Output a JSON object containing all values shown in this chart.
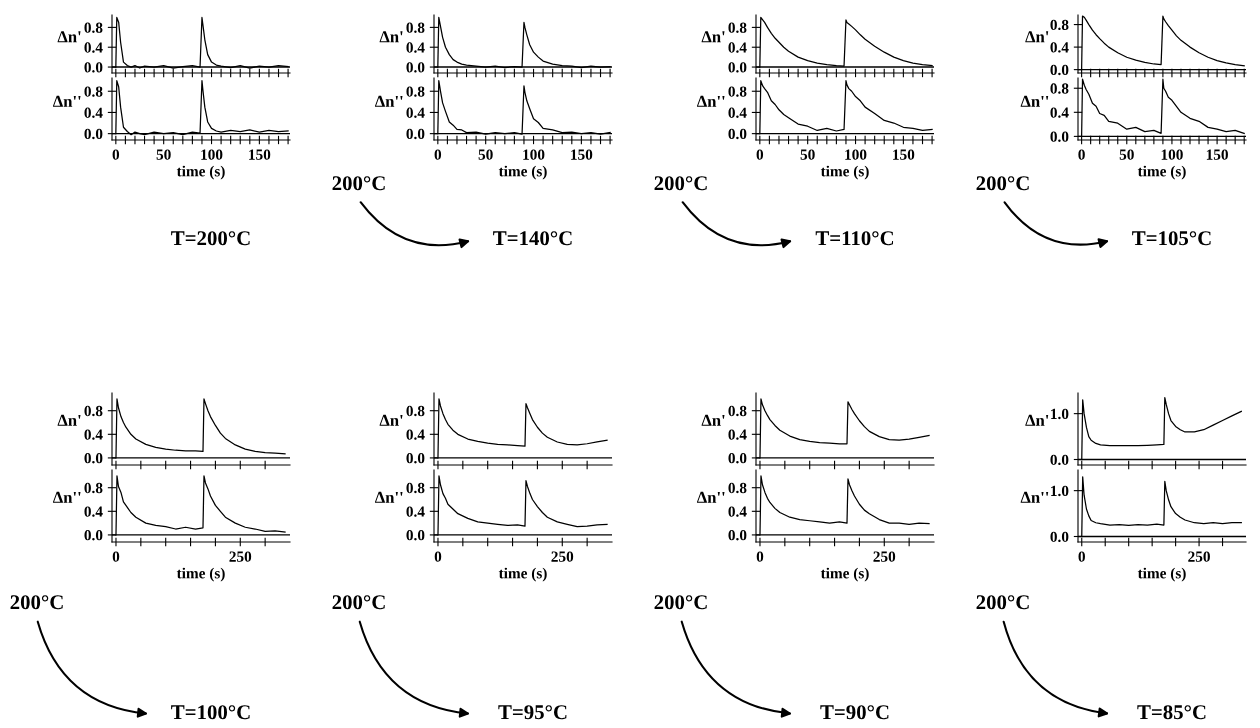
{
  "chart_data": [
    {
      "type": "line",
      "ylabel": "Δn'",
      "color": "#000000",
      "x": [
        0,
        1,
        3,
        5,
        8,
        12,
        16,
        20,
        25,
        30,
        40,
        50,
        60,
        70,
        80,
        88,
        90,
        91,
        93,
        96,
        100,
        105,
        110,
        120,
        130,
        140,
        150,
        160,
        170,
        180
      ],
      "values": [
        0,
        1.0,
        0.9,
        0.5,
        0.1,
        0.03,
        0.0,
        0.03,
        -0.02,
        0.02,
        0.0,
        0.03,
        -0.02,
        0.01,
        0.03,
        0.0,
        1.0,
        0.85,
        0.55,
        0.25,
        0.1,
        0.04,
        0.02,
        -0.01,
        0.03,
        -0.02,
        0.02,
        0.0,
        0.03,
        0.01
      ],
      "xlim": [
        -4,
        182
      ],
      "xticks": [
        0,
        {
          "value": 10,
          "label": null
        },
        {
          "value": 20,
          "label": null
        },
        {
          "value": 30,
          "label": null
        },
        {
          "value": 40,
          "label": null
        },
        50,
        {
          "value": 60,
          "label": null
        },
        {
          "value": 70,
          "label": null
        },
        {
          "value": 80,
          "label": null
        },
        {
          "value": 90,
          "label": null
        },
        100,
        {
          "value": 110,
          "label": null
        },
        {
          "value": 120,
          "label": null
        },
        {
          "value": 130,
          "label": null
        },
        {
          "value": 140,
          "label": null
        },
        150,
        {
          "value": 160,
          "label": null
        },
        {
          "value": 170,
          "label": null
        },
        {
          "value": 180,
          "label": null
        }
      ],
      "ylim": [
        -0.12,
        1.05
      ],
      "yticks": [
        {
          "value": 0,
          "label": "0.0"
        },
        {
          "value": 0.4,
          "label": "0.4"
        },
        {
          "value": 0.8,
          "label": "0.8"
        }
      ],
      "tick_labels": "y",
      "ref_lines": [
        {
          "axis": "y",
          "value": 0
        }
      ]
    },
    {
      "type": "line",
      "ylabel": "Δn''",
      "xlabel": "time (s)",
      "annotations": [
        "T=200°C"
      ],
      "color": "#000000",
      "x": [
        0,
        1,
        3,
        5,
        8,
        12,
        16,
        20,
        25,
        30,
        40,
        50,
        60,
        70,
        80,
        88,
        90,
        91,
        93,
        96,
        100,
        105,
        110,
        120,
        130,
        140,
        150,
        160,
        170,
        180
      ],
      "values": [
        0,
        1.0,
        0.88,
        0.5,
        0.12,
        0.04,
        -0.02,
        0.03,
        0.0,
        -0.02,
        0.03,
        0.0,
        0.02,
        -0.02,
        0.03,
        0.01,
        1.0,
        0.82,
        0.5,
        0.22,
        0.1,
        0.05,
        0.03,
        0.06,
        0.04,
        0.07,
        0.03,
        0.06,
        0.04,
        0.05
      ],
      "xlim": [
        -4,
        182
      ],
      "xticks": [
        0,
        {
          "value": 10,
          "label": null
        },
        {
          "value": 20,
          "label": null
        },
        {
          "value": 30,
          "label": null
        },
        {
          "value": 40,
          "label": null
        },
        50,
        {
          "value": 60,
          "label": null
        },
        {
          "value": 70,
          "label": null
        },
        {
          "value": 80,
          "label": null
        },
        {
          "value": 90,
          "label": null
        },
        100,
        {
          "value": 110,
          "label": null
        },
        {
          "value": 120,
          "label": null
        },
        {
          "value": 130,
          "label": null
        },
        {
          "value": 140,
          "label": null
        },
        150,
        {
          "value": 160,
          "label": null
        },
        {
          "value": 170,
          "label": null
        },
        {
          "value": 180,
          "label": null
        }
      ],
      "ylim": [
        -0.12,
        1.05
      ],
      "yticks": [
        {
          "value": 0,
          "label": "0.0"
        },
        {
          "value": 0.4,
          "label": "0.4"
        },
        {
          "value": 0.8,
          "label": "0.8"
        }
      ],
      "ref_lines": [
        {
          "axis": "y",
          "value": 0
        }
      ]
    },
    {
      "type": "line",
      "ylabel": "Δn'",
      "color": "#000000",
      "x": [
        0,
        1,
        3,
        5,
        8,
        12,
        16,
        20,
        25,
        30,
        40,
        50,
        60,
        70,
        80,
        88,
        90,
        91,
        93,
        96,
        100,
        105,
        110,
        120,
        130,
        140,
        150,
        160,
        170,
        180
      ],
      "values": [
        0,
        1.0,
        0.8,
        0.6,
        0.4,
        0.25,
        0.15,
        0.1,
        0.06,
        0.04,
        0.02,
        0.0,
        0.02,
        -0.01,
        0.01,
        0.0,
        0.9,
        0.8,
        0.65,
        0.45,
        0.3,
        0.2,
        0.12,
        0.06,
        0.03,
        0.02,
        -0.01,
        0.02,
        0.0,
        0.01
      ],
      "xlim": [
        -4,
        182
      ],
      "xticks": [
        0,
        {
          "value": 10,
          "label": null
        },
        {
          "value": 20,
          "label": null
        },
        {
          "value": 30,
          "label": null
        },
        {
          "value": 40,
          "label": null
        },
        50,
        {
          "value": 60,
          "label": null
        },
        {
          "value": 70,
          "label": null
        },
        {
          "value": 80,
          "label": null
        },
        {
          "value": 90,
          "label": null
        },
        100,
        {
          "value": 110,
          "label": null
        },
        {
          "value": 120,
          "label": null
        },
        {
          "value": 130,
          "label": null
        },
        {
          "value": 140,
          "label": null
        },
        150,
        {
          "value": 160,
          "label": null
        },
        {
          "value": 170,
          "label": null
        },
        {
          "value": 180,
          "label": null
        }
      ],
      "ylim": [
        -0.12,
        1.05
      ],
      "yticks": [
        {
          "value": 0,
          "label": "0.0"
        },
        {
          "value": 0.4,
          "label": "0.4"
        },
        {
          "value": 0.8,
          "label": "0.8"
        }
      ],
      "tick_labels": "y",
      "ref_lines": [
        {
          "axis": "y",
          "value": 0
        }
      ]
    },
    {
      "type": "line",
      "ylabel": "Δn''",
      "xlabel": "time (s)",
      "annotations": [
        "200°C",
        "T=140°C"
      ],
      "color": "#000000",
      "x": [
        0,
        1,
        3,
        5,
        8,
        12,
        16,
        20,
        25,
        30,
        40,
        50,
        60,
        70,
        80,
        88,
        90,
        91,
        93,
        96,
        100,
        105,
        110,
        120,
        130,
        140,
        150,
        160,
        170,
        180
      ],
      "values": [
        0,
        1.0,
        0.78,
        0.58,
        0.42,
        0.22,
        0.16,
        0.08,
        0.07,
        0.02,
        0.03,
        -0.01,
        0.02,
        0.0,
        0.02,
        -0.01,
        0.9,
        0.78,
        0.62,
        0.47,
        0.28,
        0.21,
        0.1,
        0.07,
        0.02,
        0.03,
        0.0,
        0.02,
        -0.01,
        0.02
      ],
      "xlim": [
        -4,
        182
      ],
      "xticks": [
        0,
        {
          "value": 10,
          "label": null
        },
        {
          "value": 20,
          "label": null
        },
        {
          "value": 30,
          "label": null
        },
        {
          "value": 40,
          "label": null
        },
        50,
        {
          "value": 60,
          "label": null
        },
        {
          "value": 70,
          "label": null
        },
        {
          "value": 80,
          "label": null
        },
        {
          "value": 90,
          "label": null
        },
        100,
        {
          "value": 110,
          "label": null
        },
        {
          "value": 120,
          "label": null
        },
        {
          "value": 130,
          "label": null
        },
        {
          "value": 140,
          "label": null
        },
        150,
        {
          "value": 160,
          "label": null
        },
        {
          "value": 170,
          "label": null
        },
        {
          "value": 180,
          "label": null
        }
      ],
      "ylim": [
        -0.12,
        1.05
      ],
      "yticks": [
        {
          "value": 0,
          "label": "0.0"
        },
        {
          "value": 0.4,
          "label": "0.4"
        },
        {
          "value": 0.8,
          "label": "0.8"
        }
      ],
      "ref_lines": [
        {
          "axis": "y",
          "value": 0
        }
      ]
    },
    {
      "type": "line",
      "ylabel": "Δn'",
      "color": "#000000",
      "x": [
        0,
        1,
        3,
        5,
        8,
        12,
        16,
        20,
        25,
        30,
        40,
        50,
        60,
        70,
        80,
        88,
        90,
        91,
        93,
        96,
        100,
        105,
        110,
        120,
        130,
        140,
        150,
        160,
        170,
        180
      ],
      "values": [
        0,
        1.0,
        0.95,
        0.9,
        0.8,
        0.68,
        0.58,
        0.5,
        0.4,
        0.32,
        0.2,
        0.13,
        0.08,
        0.05,
        0.03,
        0.02,
        0.95,
        0.9,
        0.87,
        0.82,
        0.75,
        0.65,
        0.56,
        0.42,
        0.3,
        0.2,
        0.13,
        0.08,
        0.05,
        0.03
      ],
      "xlim": [
        -4,
        182
      ],
      "xticks": [
        0,
        {
          "value": 10,
          "label": null
        },
        {
          "value": 20,
          "label": null
        },
        {
          "value": 30,
          "label": null
        },
        {
          "value": 40,
          "label": null
        },
        50,
        {
          "value": 60,
          "label": null
        },
        {
          "value": 70,
          "label": null
        },
        {
          "value": 80,
          "label": null
        },
        {
          "value": 90,
          "label": null
        },
        100,
        {
          "value": 110,
          "label": null
        },
        {
          "value": 120,
          "label": null
        },
        {
          "value": 130,
          "label": null
        },
        {
          "value": 140,
          "label": null
        },
        150,
        {
          "value": 160,
          "label": null
        },
        {
          "value": 170,
          "label": null
        },
        {
          "value": 180,
          "label": null
        }
      ],
      "ylim": [
        -0.12,
        1.05
      ],
      "yticks": [
        {
          "value": 0,
          "label": "0.0"
        },
        {
          "value": 0.4,
          "label": "0.4"
        },
        {
          "value": 0.8,
          "label": "0.8"
        }
      ],
      "tick_labels": "y",
      "ref_lines": [
        {
          "axis": "y",
          "value": 0
        }
      ]
    },
    {
      "type": "line",
      "ylabel": "Δn''",
      "xlabel": "time (s)",
      "annotations": [
        "200°C",
        "T=110°C"
      ],
      "color": "#000000",
      "x": [
        0,
        1,
        3,
        5,
        8,
        12,
        16,
        20,
        25,
        30,
        40,
        50,
        60,
        70,
        80,
        88,
        90,
        91,
        93,
        96,
        100,
        105,
        110,
        120,
        130,
        140,
        150,
        160,
        170,
        180
      ],
      "values": [
        0,
        1.0,
        0.9,
        0.85,
        0.78,
        0.62,
        0.55,
        0.45,
        0.36,
        0.3,
        0.18,
        0.14,
        0.06,
        0.1,
        0.05,
        0.08,
        1.0,
        0.92,
        0.85,
        0.8,
        0.7,
        0.62,
        0.5,
        0.38,
        0.25,
        0.2,
        0.12,
        0.1,
        0.06,
        0.08
      ],
      "xlim": [
        -4,
        182
      ],
      "xticks": [
        0,
        {
          "value": 10,
          "label": null
        },
        {
          "value": 20,
          "label": null
        },
        {
          "value": 30,
          "label": null
        },
        {
          "value": 40,
          "label": null
        },
        50,
        {
          "value": 60,
          "label": null
        },
        {
          "value": 70,
          "label": null
        },
        {
          "value": 80,
          "label": null
        },
        {
          "value": 90,
          "label": null
        },
        100,
        {
          "value": 110,
          "label": null
        },
        {
          "value": 120,
          "label": null
        },
        {
          "value": 130,
          "label": null
        },
        {
          "value": 140,
          "label": null
        },
        150,
        {
          "value": 160,
          "label": null
        },
        {
          "value": 170,
          "label": null
        },
        {
          "value": 180,
          "label": null
        }
      ],
      "ylim": [
        -0.12,
        1.05
      ],
      "yticks": [
        {
          "value": 0,
          "label": "0.0"
        },
        {
          "value": 0.4,
          "label": "0.4"
        },
        {
          "value": 0.8,
          "label": "0.8"
        }
      ],
      "ref_lines": [
        {
          "axis": "y",
          "value": 0
        }
      ]
    },
    {
      "type": "line",
      "ylabel": "Δn'",
      "color": "#000000",
      "x": [
        0,
        1,
        3,
        5,
        8,
        12,
        16,
        20,
        25,
        30,
        40,
        50,
        60,
        70,
        80,
        88,
        90,
        91,
        93,
        96,
        100,
        105,
        110,
        120,
        130,
        140,
        150,
        160,
        170,
        180
      ],
      "values": [
        0,
        0.95,
        0.93,
        0.88,
        0.8,
        0.7,
        0.62,
        0.55,
        0.47,
        0.4,
        0.3,
        0.22,
        0.17,
        0.13,
        0.1,
        0.09,
        0.95,
        0.9,
        0.85,
        0.78,
        0.7,
        0.6,
        0.52,
        0.4,
        0.3,
        0.22,
        0.16,
        0.12,
        0.09,
        0.07
      ],
      "xlim": [
        -4,
        182
      ],
      "xticks": [
        0,
        {
          "value": 10,
          "label": null
        },
        {
          "value": 20,
          "label": null
        },
        {
          "value": 30,
          "label": null
        },
        {
          "value": 40,
          "label": null
        },
        50,
        {
          "value": 60,
          "label": null
        },
        {
          "value": 70,
          "label": null
        },
        {
          "value": 80,
          "label": null
        },
        {
          "value": 90,
          "label": null
        },
        100,
        {
          "value": 110,
          "label": null
        },
        {
          "value": 120,
          "label": null
        },
        {
          "value": 130,
          "label": null
        },
        {
          "value": 140,
          "label": null
        },
        150,
        {
          "value": 160,
          "label": null
        },
        {
          "value": 170,
          "label": null
        },
        {
          "value": 180,
          "label": null
        }
      ],
      "ylim": [
        -0.06,
        0.97
      ],
      "yticks": [
        {
          "value": 0,
          "label": "0.0"
        },
        {
          "value": 0.4,
          "label": "0.4"
        },
        {
          "value": 0.8,
          "label": "0.8"
        }
      ],
      "tick_labels": "y",
      "ref_lines": [
        {
          "axis": "y",
          "value": 0
        }
      ]
    },
    {
      "type": "line",
      "ylabel": "Δn''",
      "xlabel": "time (s)",
      "annotations": [
        "200°C",
        "T=105°C"
      ],
      "color": "#000000",
      "x": [
        0,
        1,
        3,
        5,
        8,
        12,
        16,
        20,
        25,
        30,
        40,
        50,
        60,
        70,
        80,
        88,
        90,
        91,
        93,
        96,
        100,
        105,
        110,
        120,
        130,
        140,
        150,
        160,
        170,
        180
      ],
      "values": [
        0,
        0.95,
        0.85,
        0.78,
        0.7,
        0.55,
        0.5,
        0.38,
        0.35,
        0.25,
        0.22,
        0.12,
        0.15,
        0.08,
        0.1,
        0.05,
        0.95,
        0.8,
        0.75,
        0.65,
        0.6,
        0.5,
        0.4,
        0.3,
        0.25,
        0.15,
        0.12,
        0.08,
        0.1,
        0.05
      ],
      "xlim": [
        -4,
        182
      ],
      "xticks": [
        0,
        {
          "value": 10,
          "label": null
        },
        {
          "value": 20,
          "label": null
        },
        {
          "value": 30,
          "label": null
        },
        {
          "value": 40,
          "label": null
        },
        50,
        {
          "value": 60,
          "label": null
        },
        {
          "value": 70,
          "label": null
        },
        {
          "value": 80,
          "label": null
        },
        {
          "value": 90,
          "label": null
        },
        100,
        {
          "value": 110,
          "label": null
        },
        {
          "value": 120,
          "label": null
        },
        {
          "value": 130,
          "label": null
        },
        {
          "value": 140,
          "label": null
        },
        150,
        {
          "value": 160,
          "label": null
        },
        {
          "value": 170,
          "label": null
        },
        {
          "value": 180,
          "label": null
        }
      ],
      "ylim": [
        -0.06,
        0.97
      ],
      "yticks": [
        {
          "value": 0,
          "label": "0.0"
        },
        {
          "value": 0.4,
          "label": "0.4"
        },
        {
          "value": 0.8,
          "label": "0.8"
        }
      ],
      "ref_lines": [
        {
          "axis": "y",
          "value": 0
        }
      ]
    },
    {
      "type": "line",
      "ylabel": "Δn'",
      "color": "#000000",
      "x": [
        0,
        2,
        5,
        10,
        15,
        20,
        30,
        40,
        60,
        80,
        100,
        120,
        140,
        160,
        175,
        177,
        180,
        185,
        190,
        200,
        210,
        220,
        240,
        260,
        280,
        300,
        320,
        340
      ],
      "values": [
        0,
        1.0,
        0.85,
        0.7,
        0.6,
        0.52,
        0.4,
        0.32,
        0.23,
        0.18,
        0.15,
        0.13,
        0.12,
        0.12,
        0.11,
        1.0,
        0.92,
        0.8,
        0.7,
        0.55,
        0.42,
        0.33,
        0.22,
        0.15,
        0.11,
        0.09,
        0.08,
        0.07
      ],
      "xlim": [
        -8,
        350
      ],
      "xticks": [
        0,
        {
          "value": 50,
          "label": null
        },
        {
          "value": 100,
          "label": null
        },
        {
          "value": 150,
          "label": null
        },
        {
          "value": 200,
          "label": null
        },
        250,
        {
          "value": 300,
          "label": null
        }
      ],
      "ylim": [
        -0.12,
        1.1
      ],
      "yticks": [
        {
          "value": 0,
          "label": "0.0"
        },
        {
          "value": 0.4,
          "label": "0.4"
        },
        {
          "value": 0.8,
          "label": "0.8"
        }
      ],
      "tick_labels": "y",
      "ref_lines": [
        {
          "axis": "y",
          "value": 0
        }
      ]
    },
    {
      "type": "line",
      "ylabel": "Δn''",
      "xlabel": "time (s)",
      "annotations": [
        "200°C",
        "T=100°C"
      ],
      "color": "#000000",
      "x": [
        0,
        2,
        5,
        10,
        15,
        20,
        30,
        40,
        60,
        80,
        100,
        120,
        140,
        160,
        175,
        177,
        180,
        185,
        190,
        200,
        210,
        220,
        240,
        260,
        280,
        300,
        320,
        340
      ],
      "values": [
        0,
        1.0,
        0.82,
        0.72,
        0.56,
        0.5,
        0.38,
        0.3,
        0.2,
        0.16,
        0.14,
        0.1,
        0.13,
        0.1,
        0.12,
        1.0,
        0.88,
        0.78,
        0.66,
        0.5,
        0.4,
        0.3,
        0.2,
        0.13,
        0.1,
        0.06,
        0.07,
        0.05
      ],
      "xlim": [
        -8,
        350
      ],
      "xticks": [
        0,
        {
          "value": 50,
          "label": null
        },
        {
          "value": 100,
          "label": null
        },
        {
          "value": 150,
          "label": null
        },
        {
          "value": 200,
          "label": null
        },
        250,
        {
          "value": 300,
          "label": null
        }
      ],
      "ylim": [
        -0.12,
        1.1
      ],
      "yticks": [
        {
          "value": 0,
          "label": "0.0"
        },
        {
          "value": 0.4,
          "label": "0.4"
        },
        {
          "value": 0.8,
          "label": "0.8"
        }
      ],
      "ref_lines": [
        {
          "axis": "y",
          "value": 0
        }
      ]
    },
    {
      "type": "line",
      "ylabel": "Δn'",
      "color": "#000000",
      "x": [
        0,
        2,
        5,
        10,
        15,
        20,
        30,
        40,
        60,
        80,
        100,
        120,
        140,
        160,
        175,
        177,
        180,
        185,
        190,
        200,
        210,
        220,
        240,
        260,
        280,
        300,
        320,
        340
      ],
      "values": [
        0,
        1.0,
        0.88,
        0.75,
        0.65,
        0.57,
        0.47,
        0.4,
        0.32,
        0.28,
        0.25,
        0.23,
        0.22,
        0.21,
        0.2,
        0.92,
        0.85,
        0.75,
        0.65,
        0.52,
        0.42,
        0.35,
        0.27,
        0.23,
        0.22,
        0.24,
        0.27,
        0.3
      ],
      "xlim": [
        -8,
        350
      ],
      "xticks": [
        0,
        {
          "value": 50,
          "label": null
        },
        {
          "value": 100,
          "label": null
        },
        {
          "value": 150,
          "label": null
        },
        {
          "value": 200,
          "label": null
        },
        250,
        {
          "value": 300,
          "label": null
        }
      ],
      "ylim": [
        -0.12,
        1.1
      ],
      "yticks": [
        {
          "value": 0,
          "label": "0.0"
        },
        {
          "value": 0.4,
          "label": "0.4"
        },
        {
          "value": 0.8,
          "label": "0.8"
        }
      ],
      "tick_labels": "y",
      "ref_lines": [
        {
          "axis": "y",
          "value": 0
        }
      ]
    },
    {
      "type": "line",
      "ylabel": "Δn''",
      "xlabel": "time (s)",
      "annotations": [
        "200°C",
        "T=95°C"
      ],
      "color": "#000000",
      "x": [
        0,
        2,
        5,
        10,
        15,
        20,
        30,
        40,
        60,
        80,
        100,
        120,
        140,
        160,
        175,
        177,
        180,
        185,
        190,
        200,
        210,
        220,
        240,
        260,
        280,
        300,
        320,
        340
      ],
      "values": [
        0,
        1.0,
        0.85,
        0.7,
        0.62,
        0.52,
        0.44,
        0.36,
        0.28,
        0.22,
        0.2,
        0.18,
        0.16,
        0.17,
        0.15,
        0.92,
        0.82,
        0.7,
        0.6,
        0.48,
        0.38,
        0.3,
        0.22,
        0.18,
        0.14,
        0.15,
        0.17,
        0.18
      ],
      "xlim": [
        -8,
        350
      ],
      "xticks": [
        0,
        {
          "value": 50,
          "label": null
        },
        {
          "value": 100,
          "label": null
        },
        {
          "value": 150,
          "label": null
        },
        {
          "value": 200,
          "label": null
        },
        250,
        {
          "value": 300,
          "label": null
        }
      ],
      "ylim": [
        -0.12,
        1.1
      ],
      "yticks": [
        {
          "value": 0,
          "label": "0.0"
        },
        {
          "value": 0.4,
          "label": "0.4"
        },
        {
          "value": 0.8,
          "label": "0.8"
        }
      ],
      "ref_lines": [
        {
          "axis": "y",
          "value": 0
        }
      ]
    },
    {
      "type": "line",
      "ylabel": "Δn'",
      "color": "#000000",
      "x": [
        0,
        2,
        5,
        10,
        15,
        20,
        30,
        40,
        60,
        80,
        100,
        120,
        140,
        160,
        175,
        177,
        180,
        185,
        190,
        200,
        210,
        220,
        240,
        260,
        280,
        300,
        320,
        340
      ],
      "values": [
        0,
        1.0,
        0.9,
        0.8,
        0.72,
        0.65,
        0.55,
        0.47,
        0.37,
        0.31,
        0.28,
        0.26,
        0.25,
        0.24,
        0.24,
        0.95,
        0.9,
        0.82,
        0.75,
        0.63,
        0.53,
        0.45,
        0.36,
        0.31,
        0.3,
        0.32,
        0.35,
        0.38
      ],
      "xlim": [
        -8,
        350
      ],
      "xticks": [
        0,
        {
          "value": 50,
          "label": null
        },
        {
          "value": 100,
          "label": null
        },
        {
          "value": 150,
          "label": null
        },
        {
          "value": 200,
          "label": null
        },
        250,
        {
          "value": 300,
          "label": null
        }
      ],
      "ylim": [
        -0.12,
        1.1
      ],
      "yticks": [
        {
          "value": 0,
          "label": "0.0"
        },
        {
          "value": 0.4,
          "label": "0.4"
        },
        {
          "value": 0.8,
          "label": "0.8"
        }
      ],
      "tick_labels": "y",
      "ref_lines": [
        {
          "axis": "y",
          "value": 0
        }
      ]
    },
    {
      "type": "line",
      "ylabel": "Δn''",
      "xlabel": "time (s)",
      "annotations": [
        "200°C",
        "T=90°C"
      ],
      "color": "#000000",
      "x": [
        0,
        2,
        5,
        10,
        15,
        20,
        30,
        40,
        60,
        80,
        100,
        120,
        140,
        160,
        175,
        177,
        180,
        185,
        190,
        200,
        210,
        220,
        240,
        260,
        280,
        300,
        320,
        340
      ],
      "values": [
        0,
        1.0,
        0.85,
        0.72,
        0.62,
        0.55,
        0.45,
        0.38,
        0.3,
        0.26,
        0.24,
        0.22,
        0.2,
        0.22,
        0.2,
        0.95,
        0.85,
        0.75,
        0.66,
        0.52,
        0.42,
        0.36,
        0.26,
        0.2,
        0.2,
        0.18,
        0.2,
        0.19
      ],
      "xlim": [
        -8,
        350
      ],
      "xticks": [
        0,
        {
          "value": 50,
          "label": null
        },
        {
          "value": 100,
          "label": null
        },
        {
          "value": 150,
          "label": null
        },
        {
          "value": 200,
          "label": null
        },
        250,
        {
          "value": 300,
          "label": null
        }
      ],
      "ylim": [
        -0.12,
        1.1
      ],
      "yticks": [
        {
          "value": 0,
          "label": "0.0"
        },
        {
          "value": 0.4,
          "label": "0.4"
        },
        {
          "value": 0.8,
          "label": "0.8"
        }
      ],
      "ref_lines": [
        {
          "axis": "y",
          "value": 0
        }
      ]
    },
    {
      "type": "line",
      "ylabel": "Δn'",
      "color": "#000000",
      "x": [
        0,
        2,
        5,
        10,
        15,
        20,
        30,
        40,
        60,
        80,
        100,
        120,
        140,
        160,
        175,
        177,
        180,
        185,
        190,
        200,
        210,
        220,
        240,
        260,
        280,
        300,
        320,
        340
      ],
      "values": [
        0,
        1.3,
        1.0,
        0.7,
        0.5,
        0.42,
        0.35,
        0.32,
        0.3,
        0.3,
        0.3,
        0.3,
        0.31,
        0.32,
        0.33,
        1.35,
        1.2,
        1.0,
        0.85,
        0.72,
        0.65,
        0.6,
        0.6,
        0.65,
        0.75,
        0.85,
        0.95,
        1.05
      ],
      "xlim": [
        -8,
        350
      ],
      "xticks": [
        0,
        {
          "value": 50,
          "label": null
        },
        {
          "value": 100,
          "label": null
        },
        {
          "value": 150,
          "label": null
        },
        {
          "value": 200,
          "label": null
        },
        250,
        {
          "value": 300,
          "label": null
        }
      ],
      "ylim": [
        -0.12,
        1.45
      ],
      "yticks": [
        {
          "value": 0,
          "label": "0.0"
        },
        {
          "value": 1.0,
          "label": "1.0"
        }
      ],
      "tick_labels": "y",
      "ref_lines": [
        {
          "axis": "y",
          "value": 0
        }
      ]
    },
    {
      "type": "line",
      "ylabel": "Δn''",
      "xlabel": "time (s)",
      "annotations": [
        "200°C",
        "T=85°C"
      ],
      "color": "#000000",
      "x": [
        0,
        2,
        5,
        10,
        15,
        20,
        30,
        40,
        60,
        80,
        100,
        120,
        140,
        160,
        175,
        177,
        180,
        185,
        190,
        200,
        210,
        220,
        240,
        260,
        280,
        300,
        320,
        340
      ],
      "values": [
        0,
        1.3,
        0.9,
        0.6,
        0.45,
        0.35,
        0.3,
        0.28,
        0.25,
        0.26,
        0.24,
        0.26,
        0.25,
        0.27,
        0.25,
        1.2,
        1.0,
        0.8,
        0.65,
        0.5,
        0.42,
        0.36,
        0.3,
        0.28,
        0.3,
        0.28,
        0.3,
        0.3
      ],
      "xlim": [
        -8,
        350
      ],
      "xticks": [
        0,
        {
          "value": 50,
          "label": null
        },
        {
          "value": 100,
          "label": null
        },
        {
          "value": 150,
          "label": null
        },
        {
          "value": 200,
          "label": null
        },
        250,
        {
          "value": 300,
          "label": null
        }
      ],
      "ylim": [
        -0.12,
        1.45
      ],
      "yticks": [
        {
          "value": 0,
          "label": "0.0"
        },
        {
          "value": 1.0,
          "label": "1.0"
        }
      ],
      "ref_lines": [
        {
          "axis": "y",
          "value": 0
        }
      ]
    }
  ]
}
